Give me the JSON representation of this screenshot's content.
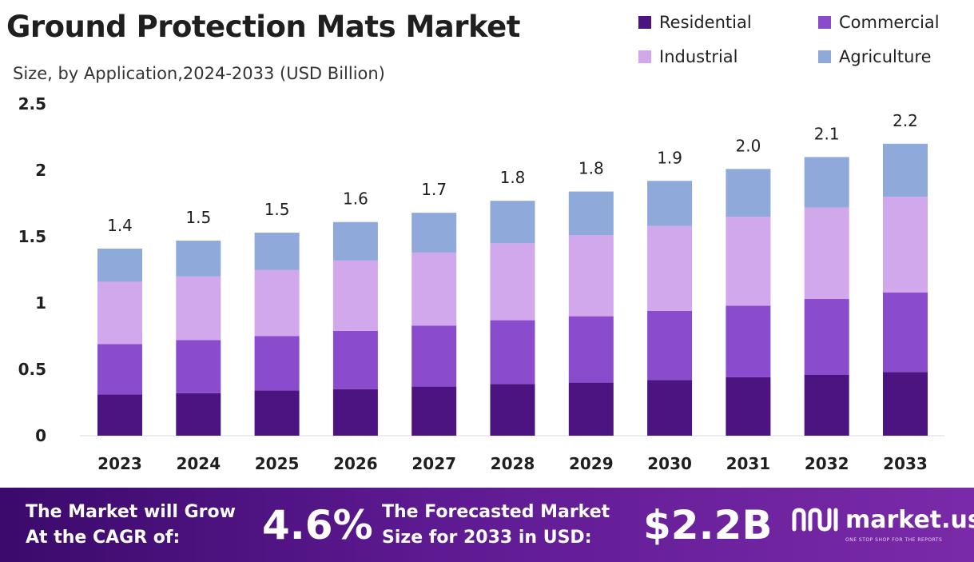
{
  "header": {
    "title": "Ground Protection Mats Market",
    "subtitle": "Size, by Application,2024-2033 (USD Billion)"
  },
  "legend": [
    {
      "label": "Residential",
      "color": "#4b1480"
    },
    {
      "label": "Commercial",
      "color": "#8a4ccc"
    },
    {
      "label": "Industrial",
      "color": "#d1a8ec"
    },
    {
      "label": "Agriculture",
      "color": "#8fa9da"
    }
  ],
  "chart_data": {
    "type": "bar",
    "stacked": true,
    "title": "Ground Protection Mats Market",
    "subtitle": "Size, by Application,2024-2033 (USD Billion)",
    "categories": [
      "2023",
      "2024",
      "2025",
      "2026",
      "2027",
      "2028",
      "2029",
      "2030",
      "2031",
      "2032",
      "2033"
    ],
    "series": [
      {
        "name": "Residential",
        "color": "#4b1480",
        "values": [
          0.31,
          0.32,
          0.34,
          0.35,
          0.37,
          0.39,
          0.4,
          0.42,
          0.44,
          0.46,
          0.48
        ]
      },
      {
        "name": "Commercial",
        "color": "#8a4ccc",
        "values": [
          0.38,
          0.4,
          0.41,
          0.44,
          0.46,
          0.48,
          0.5,
          0.52,
          0.54,
          0.57,
          0.6
        ]
      },
      {
        "name": "Industrial",
        "color": "#d1a8ec",
        "values": [
          0.47,
          0.48,
          0.5,
          0.53,
          0.55,
          0.58,
          0.61,
          0.64,
          0.67,
          0.69,
          0.72
        ]
      },
      {
        "name": "Agriculture",
        "color": "#8fa9da",
        "values": [
          0.25,
          0.27,
          0.28,
          0.29,
          0.3,
          0.32,
          0.33,
          0.34,
          0.36,
          0.38,
          0.4
        ]
      }
    ],
    "totals_labels": [
      "1.4",
      "1.5",
      "1.5",
      "1.6",
      "1.7",
      "1.8",
      "1.8",
      "1.9",
      "2.0",
      "2.1",
      "2.2"
    ],
    "y_ticks": [
      {
        "value": 0,
        "label": "0"
      },
      {
        "value": 0.5,
        "label": "0.5"
      },
      {
        "value": 1,
        "label": "1"
      },
      {
        "value": 1.5,
        "label": "1.5"
      },
      {
        "value": 2,
        "label": "2"
      },
      {
        "value": 2.5,
        "label": "2.5"
      }
    ],
    "ylim": [
      0,
      2.5
    ],
    "xlabel": "",
    "ylabel": "",
    "grid": false,
    "legend_position": "top-right"
  },
  "footer": {
    "cagr_text_line1": "The Market will Grow",
    "cagr_text_line2": "At the CAGR of:",
    "cagr_value": "4.6%",
    "forecast_text_line1": "The Forecasted Market",
    "forecast_text_line2": "Size for 2033 in USD:",
    "forecast_value": "$2.2B",
    "brand_name": "market.us",
    "brand_tagline": "ONE STOP SHOP FOR THE REPORTS"
  }
}
